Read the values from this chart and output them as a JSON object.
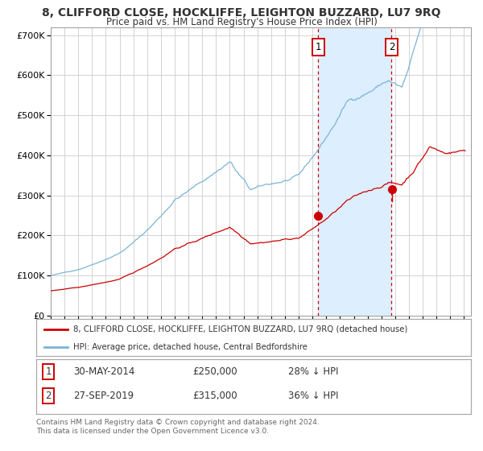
{
  "title1": "8, CLIFFORD CLOSE, HOCKLIFFE, LEIGHTON BUZZARD, LU7 9RQ",
  "title2": "Price paid vs. HM Land Registry's House Price Index (HPI)",
  "legend1": "8, CLIFFORD CLOSE, HOCKLIFFE, LEIGHTON BUZZARD, LU7 9RQ (detached house)",
  "legend2": "HPI: Average price, detached house, Central Bedfordshire",
  "sale1_date": "30-MAY-2014",
  "sale1_price": 250000,
  "sale1_pct": "28% ↓ HPI",
  "sale2_date": "27-SEP-2019",
  "sale2_price": 315000,
  "sale2_pct": "36% ↓ HPI",
  "sale1_year": 2014.41,
  "sale2_year": 2019.74,
  "hpi_color": "#7ab4d8",
  "price_color": "#cc0000",
  "shade_color": "#ddeeff",
  "vline_color": "#cc0000",
  "grid_color": "#cccccc",
  "border_color": "#aaaaaa",
  "background": "#ffffff",
  "text_color": "#333333",
  "footnote_color": "#666666",
  "footnote1": "Contains HM Land Registry data © Crown copyright and database right 2024.",
  "footnote2": "This data is licensed under the Open Government Licence v3.0.",
  "ylim": [
    0,
    720000
  ],
  "xlim_min": 1995,
  "xlim_max": 2025.5,
  "yticks": [
    0,
    100000,
    200000,
    300000,
    400000,
    500000,
    600000,
    700000
  ],
  "xticks": [
    1995,
    1996,
    1997,
    1998,
    1999,
    2000,
    2001,
    2002,
    2003,
    2004,
    2005,
    2006,
    2007,
    2008,
    2009,
    2010,
    2011,
    2012,
    2013,
    2014,
    2015,
    2016,
    2017,
    2018,
    2019,
    2020,
    2021,
    2022,
    2023,
    2024,
    2025
  ]
}
